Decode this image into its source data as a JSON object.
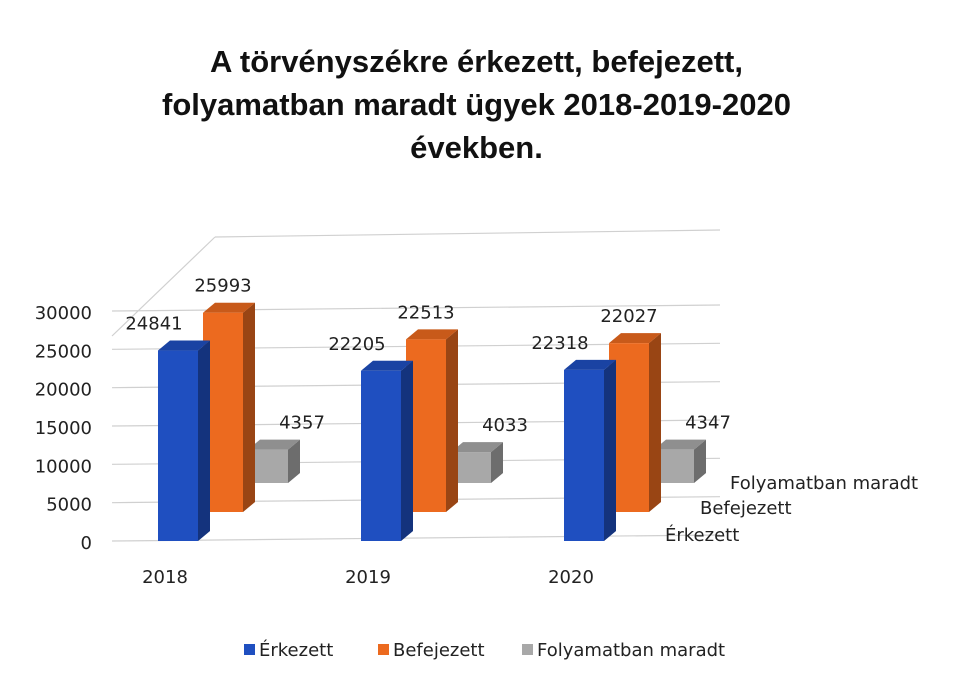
{
  "chart_data": {
    "type": "bar3d",
    "title": "A törvényszékre érkezett, befejezett,\nfolyamatban maradt ügyek 2018-2019-2020\névekben.",
    "categories": [
      "2018",
      "2019",
      "2020"
    ],
    "series": [
      {
        "name": "Érkezett",
        "color": "#1f4fc0",
        "values": [
          24841,
          22205,
          22318
        ]
      },
      {
        "name": "Befejezett",
        "color": "#ec6a1f",
        "values": [
          25993,
          22513,
          22027
        ]
      },
      {
        "name": "Folyamatban maradt",
        "color": "#a8a8a8",
        "values": [
          4357,
          4033,
          4347
        ]
      }
    ],
    "ylim": [
      0,
      30000
    ],
    "yticks": [
      0,
      5000,
      10000,
      15000,
      20000,
      25000,
      30000
    ],
    "grid": true,
    "legend": "bottom"
  }
}
